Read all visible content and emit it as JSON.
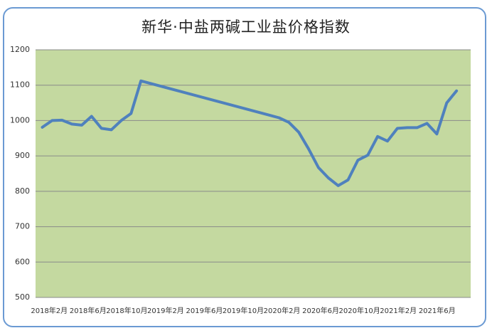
{
  "chart_data": {
    "type": "line",
    "title": "新华·中盐两碱工业盐价格指数",
    "xlabel": "",
    "ylabel": "",
    "ylim": [
      500,
      1200
    ],
    "yticks": [
      500,
      600,
      700,
      800,
      900,
      1000,
      1100,
      1200
    ],
    "x_tick_labels": [
      "2018年2月",
      "2018年6月",
      "2018年10月",
      "2019年2月",
      "2019年6月",
      "2019年10月",
      "2020年2月",
      "2020年6月",
      "2020年10月",
      "2021年2月",
      "2021年6月"
    ],
    "grid": true,
    "background": "#c4d9a0",
    "line_color": "#4f81bd",
    "series": [
      {
        "x": [
          "2018-01",
          "2018-02",
          "2018-03",
          "2018-04",
          "2018-05",
          "2018-06",
          "2018-07",
          "2018-08",
          "2018-09",
          "2018-10",
          "2018-11",
          "2020-01",
          "2020-02",
          "2020-03",
          "2020-04",
          "2020-05",
          "2020-06",
          "2020-07",
          "2020-08",
          "2020-09",
          "2020-10",
          "2020-11",
          "2020-12",
          "2021-01",
          "2021-02",
          "2021-03",
          "2021-04",
          "2021-05",
          "2021-06",
          "2021-07"
        ],
        "values": [
          981,
          1000,
          1001,
          990,
          987,
          1012,
          978,
          974,
          1000,
          1020,
          1112,
          1008,
          995,
          967,
          920,
          867,
          838,
          816,
          832,
          888,
          902,
          955,
          942,
          978,
          980,
          980,
          992,
          962,
          1050,
          1084
        ]
      }
    ]
  }
}
